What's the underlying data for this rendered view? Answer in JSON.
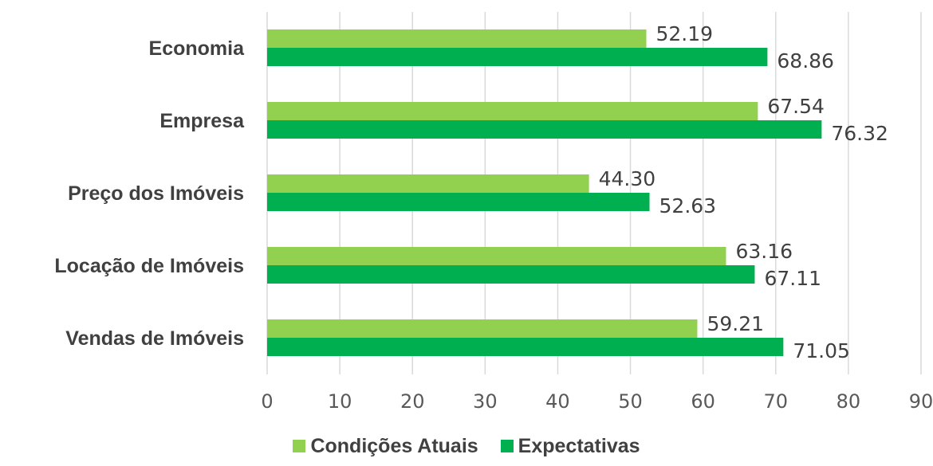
{
  "chart_data": {
    "type": "bar",
    "orientation": "horizontal",
    "categories": [
      "Economia",
      "Empresa",
      "Preço dos Imóveis",
      "Locação de Imóveis",
      "Vendas de Imóveis"
    ],
    "series": [
      {
        "name": "Condições Atuais",
        "color": "#92d050",
        "values": [
          52.19,
          67.54,
          44.3,
          63.16,
          59.21
        ],
        "labels": [
          "52.19",
          "67.54",
          "44.30",
          "63.16",
          "59.21"
        ]
      },
      {
        "name": "Expectativas",
        "color": "#00b050",
        "values": [
          68.86,
          76.32,
          52.63,
          67.11,
          71.05
        ],
        "labels": [
          "68.86",
          "76.32",
          "52.63",
          "67.11",
          "71.05"
        ]
      }
    ],
    "xlim": [
      0,
      90
    ],
    "xticks": [
      0,
      10,
      20,
      30,
      40,
      50,
      60,
      70,
      80,
      90
    ],
    "xtick_labels": [
      "0",
      "10",
      "20",
      "30",
      "40",
      "50",
      "60",
      "70",
      "80",
      "90"
    ],
    "grid": "vertical",
    "legend_position": "bottom"
  }
}
